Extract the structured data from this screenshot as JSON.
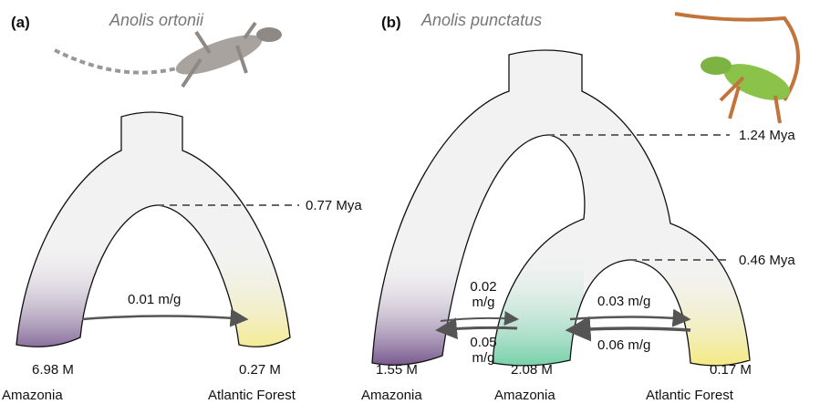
{
  "panels": [
    {
      "label": "(a)",
      "species": "Anolis ortonii",
      "divergences": [
        {
          "label": "0.77 Mya"
        }
      ],
      "populations": [
        {
          "size": "6.98 M",
          "region": "Amazonia"
        },
        {
          "size": "0.27 M",
          "region": "Atlantic Forest"
        }
      ],
      "migrations": [
        {
          "rate": "0.01 m/g"
        }
      ]
    },
    {
      "label": "(b)",
      "species": "Anolis punctatus",
      "divergences": [
        {
          "label": "1.24 Mya"
        },
        {
          "label": "0.46 Mya"
        }
      ],
      "populations": [
        {
          "size": "1.55 M",
          "region": "Amazonia"
        },
        {
          "size": "2.08 M",
          "region": "Amazonia"
        },
        {
          "size": "0.17 M",
          "region": "Atlantic Forest"
        }
      ],
      "migrations": [
        {
          "rate": "0.02 m/g"
        },
        {
          "rate": "0.05 m/g"
        },
        {
          "rate": "0.03 m/g"
        },
        {
          "rate": "0.06 m/g"
        }
      ]
    }
  ]
}
